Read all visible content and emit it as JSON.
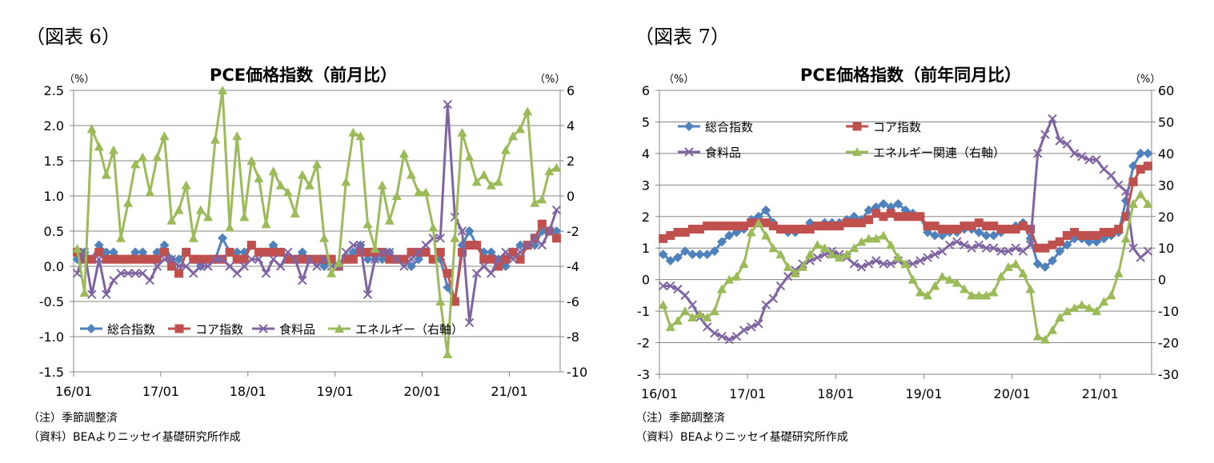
{
  "chart_data": [
    {
      "type": "line",
      "fig_label": "（図表 6）",
      "title": "PCE価格指数（前月比）",
      "y_unit_left": "（%）",
      "y_unit_right": "（%）",
      "y_ticks_left": [
        "2.5",
        "2.0",
        "1.5",
        "1.0",
        "0.5",
        "0.0",
        "-0.5",
        "-1.0",
        "-1.5"
      ],
      "y_ticks_right": [
        "6",
        "4",
        "2",
        "0",
        "-2",
        "-4",
        "-6",
        "-8",
        "-10"
      ],
      "ylim_left": [
        -1.5,
        2.5
      ],
      "ylim_right": [
        -10,
        6
      ],
      "x_ticks": [
        "16/01",
        "17/01",
        "18/01",
        "19/01",
        "20/01",
        "21/01"
      ],
      "grid": true,
      "legend_position": "bottom-left",
      "notes": [
        "（注）季節調整済",
        "（資料）BEAよりニッセイ基礎研究所作成"
      ],
      "series": [
        {
          "name": "総合指数",
          "axis": "left",
          "color": "#4F81BD",
          "marker": "diamond",
          "values": [
            0.1,
            0.2,
            0.1,
            0.3,
            0.2,
            0.2,
            0.1,
            0.1,
            0.2,
            0.2,
            0.1,
            0.2,
            0.3,
            0.1,
            0.1,
            0.2,
            0.1,
            0.0,
            0.1,
            0.1,
            0.4,
            0.2,
            0.2,
            0.2,
            0.3,
            0.2,
            0.2,
            0.3,
            0.2,
            0.1,
            0.1,
            0.2,
            0.1,
            0.1,
            0.0,
            0.1,
            0.0,
            0.1,
            0.2,
            0.3,
            0.1,
            0.1,
            0.1,
            0.2,
            0.1,
            0.1,
            0.0,
            0.1,
            0.2,
            0.1,
            0.1,
            -0.3,
            -0.5,
            0.3,
            0.5,
            0.3,
            0.2,
            0.2,
            0.1,
            0.0,
            0.2,
            0.3,
            0.3,
            0.3,
            0.5,
            0.5,
            0.5
          ]
        },
        {
          "name": "コア指数",
          "axis": "left",
          "color": "#C0504D",
          "marker": "square",
          "values": [
            0.2,
            0.1,
            0.1,
            0.2,
            0.1,
            0.1,
            0.1,
            0.1,
            0.1,
            0.1,
            0.1,
            0.1,
            0.2,
            0.0,
            -0.1,
            0.2,
            0.1,
            0.1,
            0.1,
            0.1,
            0.1,
            0.2,
            0.1,
            0.1,
            0.3,
            0.2,
            0.2,
            0.2,
            0.2,
            0.1,
            0.1,
            0.1,
            0.1,
            0.1,
            0.1,
            0.1,
            0.0,
            0.1,
            0.1,
            0.2,
            0.2,
            0.2,
            0.2,
            0.1,
            0.1,
            0.1,
            0.2,
            0.2,
            0.2,
            0.1,
            0.2,
            -0.1,
            -0.5,
            0.2,
            0.3,
            0.3,
            0.1,
            0.1,
            0.0,
            0.1,
            0.2,
            0.1,
            0.3,
            0.4,
            0.6,
            0.5,
            0.4
          ]
        },
        {
          "name": "食料品",
          "axis": "left",
          "color": "#8064A2",
          "marker": "x",
          "values": [
            -0.1,
            0.2,
            -0.4,
            0.1,
            -0.4,
            -0.2,
            -0.1,
            -0.1,
            -0.1,
            -0.1,
            -0.2,
            0.0,
            0.1,
            0.1,
            0.0,
            0.0,
            -0.1,
            0.0,
            0.0,
            0.1,
            0.1,
            0.0,
            -0.1,
            0.0,
            0.1,
            0.1,
            -0.1,
            0.1,
            0.0,
            0.2,
            0.1,
            -0.2,
            0.1,
            0.0,
            0.1,
            0.0,
            0.0,
            0.2,
            0.3,
            0.3,
            -0.4,
            0.1,
            0.2,
            0.2,
            0.1,
            0.0,
            0.1,
            0.2,
            0.3,
            0.4,
            0.4,
            2.3,
            0.7,
            0.5,
            -0.8,
            -0.1,
            0.0,
            -0.1,
            0.1,
            0.2,
            0.1,
            0.2,
            0.3,
            0.4,
            0.3,
            0.5,
            0.8
          ]
        },
        {
          "name": "エネルギー（右軸）",
          "axis": "right",
          "color": "#9BBB59",
          "marker": "triangle",
          "values": [
            -3.0,
            -5.5,
            3.8,
            2.8,
            1.2,
            2.6,
            -2.4,
            -0.4,
            1.8,
            2.2,
            0.2,
            2.2,
            3.4,
            -1.4,
            -0.8,
            0.6,
            -2.4,
            -0.8,
            -1.2,
            3.2,
            6.0,
            -1.8,
            3.4,
            -1.2,
            2.0,
            1.0,
            -1.6,
            1.4,
            0.6,
            0.2,
            -1.0,
            1.2,
            0.6,
            1.8,
            -2.4,
            -4.4,
            -3.8,
            0.8,
            3.6,
            3.4,
            -1.6,
            -3.0,
            0.6,
            -1.4,
            0.0,
            2.4,
            1.2,
            0.2,
            0.2,
            -1.8,
            -6.0,
            -9.0,
            -2.4,
            3.6,
            2.2,
            0.8,
            1.2,
            0.6,
            0.8,
            2.6,
            3.4,
            3.8,
            4.8,
            -0.4,
            -0.2,
            1.4,
            1.6
          ]
        }
      ]
    },
    {
      "type": "line",
      "fig_label": "（図表 7）",
      "title": "PCE価格指数（前年同月比）",
      "y_unit_left": "（%）",
      "y_unit_right": "（%）",
      "y_ticks_left": [
        "6",
        "5",
        "4",
        "3",
        "2",
        "1",
        "0",
        "-1",
        "-2",
        "-3"
      ],
      "y_ticks_right": [
        "60",
        "50",
        "40",
        "30",
        "20",
        "10",
        "0",
        "-10",
        "-20",
        "-30"
      ],
      "ylim_left": [
        -3,
        6
      ],
      "ylim_right": [
        -30,
        60
      ],
      "x_ticks": [
        "16/01",
        "17/01",
        "18/01",
        "19/01",
        "20/01",
        "21/01"
      ],
      "grid": true,
      "legend_position": "top-left",
      "notes": [
        "（注）季節調整済",
        "（資料）BEAよりニッセイ基礎研究所作成"
      ],
      "series": [
        {
          "name": "総合指数",
          "axis": "left",
          "color": "#4F81BD",
          "marker": "diamond",
          "values": [
            0.8,
            0.6,
            0.7,
            0.9,
            0.8,
            0.8,
            0.8,
            0.9,
            1.2,
            1.4,
            1.5,
            1.6,
            1.9,
            2.0,
            2.2,
            1.8,
            1.6,
            1.5,
            1.5,
            1.6,
            1.8,
            1.7,
            1.8,
            1.8,
            1.8,
            1.9,
            2.0,
            1.9,
            2.2,
            2.3,
            2.4,
            2.3,
            2.4,
            2.2,
            2.1,
            2.0,
            1.5,
            1.4,
            1.4,
            1.5,
            1.5,
            1.6,
            1.6,
            1.5,
            1.4,
            1.4,
            1.5,
            1.6,
            1.7,
            1.8,
            1.3,
            0.5,
            0.4,
            0.6,
            0.9,
            1.1,
            1.3,
            1.3,
            1.2,
            1.2,
            1.3,
            1.4,
            1.5,
            2.5,
            3.6,
            4.0,
            4.0
          ]
        },
        {
          "name": "コア指数",
          "axis": "left",
          "color": "#C0504D",
          "marker": "square",
          "values": [
            1.3,
            1.4,
            1.5,
            1.5,
            1.6,
            1.6,
            1.7,
            1.7,
            1.7,
            1.7,
            1.7,
            1.7,
            1.8,
            1.8,
            1.8,
            1.7,
            1.6,
            1.6,
            1.6,
            1.6,
            1.6,
            1.7,
            1.7,
            1.7,
            1.7,
            1.8,
            1.8,
            1.8,
            1.9,
            2.1,
            2.0,
            2.1,
            2.0,
            2.0,
            2.0,
            2.0,
            1.7,
            1.7,
            1.6,
            1.6,
            1.6,
            1.7,
            1.7,
            1.8,
            1.7,
            1.7,
            1.6,
            1.6,
            1.6,
            1.7,
            1.6,
            1.0,
            1.0,
            1.1,
            1.2,
            1.4,
            1.5,
            1.4,
            1.4,
            1.4,
            1.5,
            1.5,
            1.6,
            2.0,
            3.1,
            3.5,
            3.6
          ]
        },
        {
          "name": "食料品",
          "axis": "left",
          "color": "#8064A2",
          "marker": "x",
          "values": [
            -0.2,
            -0.2,
            -0.3,
            -0.5,
            -0.8,
            -1.2,
            -1.5,
            -1.7,
            -1.8,
            -1.9,
            -1.8,
            -1.6,
            -1.5,
            -1.4,
            -0.8,
            -0.6,
            -0.2,
            0.1,
            0.3,
            0.5,
            0.6,
            0.7,
            0.8,
            0.9,
            0.8,
            0.7,
            0.5,
            0.4,
            0.5,
            0.6,
            0.5,
            0.5,
            0.6,
            0.5,
            0.5,
            0.6,
            0.7,
            0.8,
            0.9,
            1.1,
            1.2,
            1.1,
            1.0,
            1.1,
            1.0,
            1.0,
            0.9,
            0.9,
            1.0,
            0.9,
            1.1,
            4.0,
            4.6,
            5.1,
            4.4,
            4.3,
            4.0,
            3.9,
            3.8,
            3.8,
            3.5,
            3.3,
            3.0,
            2.8,
            1.0,
            0.7,
            0.9
          ]
        },
        {
          "name": "エネルギー関連（右軸）",
          "axis": "right",
          "color": "#9BBB59",
          "marker": "triangle",
          "values": [
            -8,
            -15,
            -13,
            -10,
            -12,
            -11,
            -12,
            -10,
            -3,
            0,
            1,
            5,
            15,
            18,
            14,
            10,
            8,
            4,
            2,
            4,
            8,
            11,
            10,
            8,
            7,
            8,
            10,
            12,
            13,
            13,
            14,
            11,
            7,
            5,
            0,
            -4,
            -5,
            -2,
            1,
            0,
            -1,
            -3,
            -5,
            -5,
            -5,
            -4,
            1,
            4,
            5,
            2,
            -3,
            -18,
            -19,
            -16,
            -12,
            -10,
            -9,
            -8,
            -9,
            -10,
            -7,
            -5,
            2,
            13,
            24,
            27,
            24
          ]
        }
      ]
    }
  ]
}
